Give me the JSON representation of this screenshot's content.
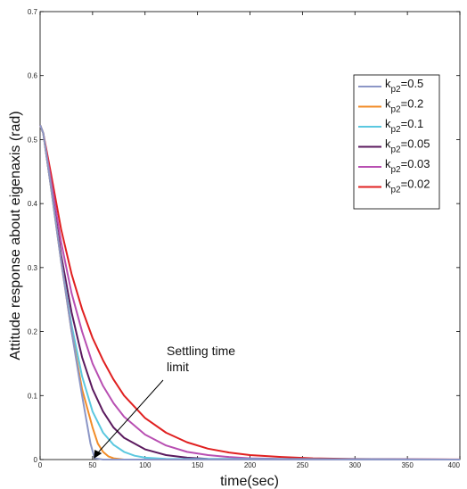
{
  "chart_data": {
    "type": "line",
    "xlabel": "time(sec)",
    "ylabel": "Attitude response about eigenaxis (rad)",
    "xlim": [
      0,
      400
    ],
    "ylim": [
      0,
      0.7
    ],
    "xticks": [
      "0",
      "50",
      "100",
      "150",
      "200",
      "250",
      "300",
      "350",
      "400"
    ],
    "yticks": [
      "0",
      "0.1",
      "0.2",
      "0.3",
      "0.4",
      "0.5",
      "0.6",
      "0.7"
    ],
    "grid": false,
    "legend_position": "top-right",
    "annotation": {
      "lines": [
        "Settling time",
        "limit"
      ],
      "target": [
        52,
        0
      ]
    },
    "series": [
      {
        "name_base": "k",
        "name_sub": "p2",
        "name_val": "=0.5",
        "color": "#8c96c6",
        "points": [
          [
            0,
            0.523
          ],
          [
            3,
            0.51
          ],
          [
            10,
            0.43
          ],
          [
            20,
            0.31
          ],
          [
            30,
            0.2
          ],
          [
            40,
            0.1
          ],
          [
            48,
            0.025
          ],
          [
            52,
            0.002
          ],
          [
            60,
            0
          ],
          [
            400,
            0
          ]
        ]
      },
      {
        "name_base": "k",
        "name_sub": "p2",
        "name_val": "=0.2",
        "color": "#f28c28",
        "points": [
          [
            0,
            0.523
          ],
          [
            3,
            0.51
          ],
          [
            10,
            0.43
          ],
          [
            20,
            0.31
          ],
          [
            30,
            0.2
          ],
          [
            40,
            0.11
          ],
          [
            50,
            0.05
          ],
          [
            55,
            0.025
          ],
          [
            60,
            0.012
          ],
          [
            65,
            0.005
          ],
          [
            70,
            0.002
          ],
          [
            80,
            0
          ],
          [
            400,
            0
          ]
        ]
      },
      {
        "name_base": "k",
        "name_sub": "p2",
        "name_val": "=0.1",
        "color": "#5bc8e0",
        "points": [
          [
            0,
            0.523
          ],
          [
            3,
            0.51
          ],
          [
            10,
            0.43
          ],
          [
            20,
            0.31
          ],
          [
            30,
            0.21
          ],
          [
            40,
            0.13
          ],
          [
            50,
            0.075
          ],
          [
            60,
            0.042
          ],
          [
            70,
            0.023
          ],
          [
            80,
            0.012
          ],
          [
            90,
            0.006
          ],
          [
            100,
            0.003
          ],
          [
            120,
            0.001
          ],
          [
            400,
            0
          ]
        ]
      },
      {
        "name_base": "k",
        "name_sub": "p2",
        "name_val": "=0.05",
        "color": "#5b1a5e",
        "points": [
          [
            0,
            0.523
          ],
          [
            3,
            0.51
          ],
          [
            10,
            0.43
          ],
          [
            20,
            0.32
          ],
          [
            30,
            0.23
          ],
          [
            40,
            0.16
          ],
          [
            50,
            0.11
          ],
          [
            60,
            0.075
          ],
          [
            70,
            0.05
          ],
          [
            80,
            0.034
          ],
          [
            100,
            0.016
          ],
          [
            120,
            0.007
          ],
          [
            140,
            0.003
          ],
          [
            160,
            0.001
          ],
          [
            400,
            0
          ]
        ]
      },
      {
        "name_base": "k",
        "name_sub": "p2",
        "name_val": "=0.03",
        "color": "#b84fb2",
        "points": [
          [
            0,
            0.523
          ],
          [
            3,
            0.51
          ],
          [
            10,
            0.44
          ],
          [
            20,
            0.34
          ],
          [
            30,
            0.26
          ],
          [
            40,
            0.2
          ],
          [
            50,
            0.15
          ],
          [
            60,
            0.115
          ],
          [
            70,
            0.088
          ],
          [
            80,
            0.067
          ],
          [
            100,
            0.039
          ],
          [
            120,
            0.022
          ],
          [
            140,
            0.012
          ],
          [
            160,
            0.007
          ],
          [
            180,
            0.004
          ],
          [
            200,
            0.002
          ],
          [
            230,
            0.001
          ],
          [
            400,
            0
          ]
        ]
      },
      {
        "name_base": "k",
        "name_sub": "p2",
        "name_val": "=0.02",
        "color": "#e02020",
        "points": [
          [
            0,
            0.523
          ],
          [
            3,
            0.51
          ],
          [
            10,
            0.45
          ],
          [
            20,
            0.36
          ],
          [
            30,
            0.29
          ],
          [
            40,
            0.235
          ],
          [
            50,
            0.19
          ],
          [
            60,
            0.155
          ],
          [
            70,
            0.125
          ],
          [
            80,
            0.1
          ],
          [
            100,
            0.065
          ],
          [
            120,
            0.042
          ],
          [
            140,
            0.027
          ],
          [
            160,
            0.017
          ],
          [
            180,
            0.011
          ],
          [
            200,
            0.007
          ],
          [
            230,
            0.004
          ],
          [
            260,
            0.002
          ],
          [
            300,
            0.0008
          ],
          [
            350,
            0.0003
          ],
          [
            400,
            0.0001
          ]
        ]
      }
    ]
  }
}
